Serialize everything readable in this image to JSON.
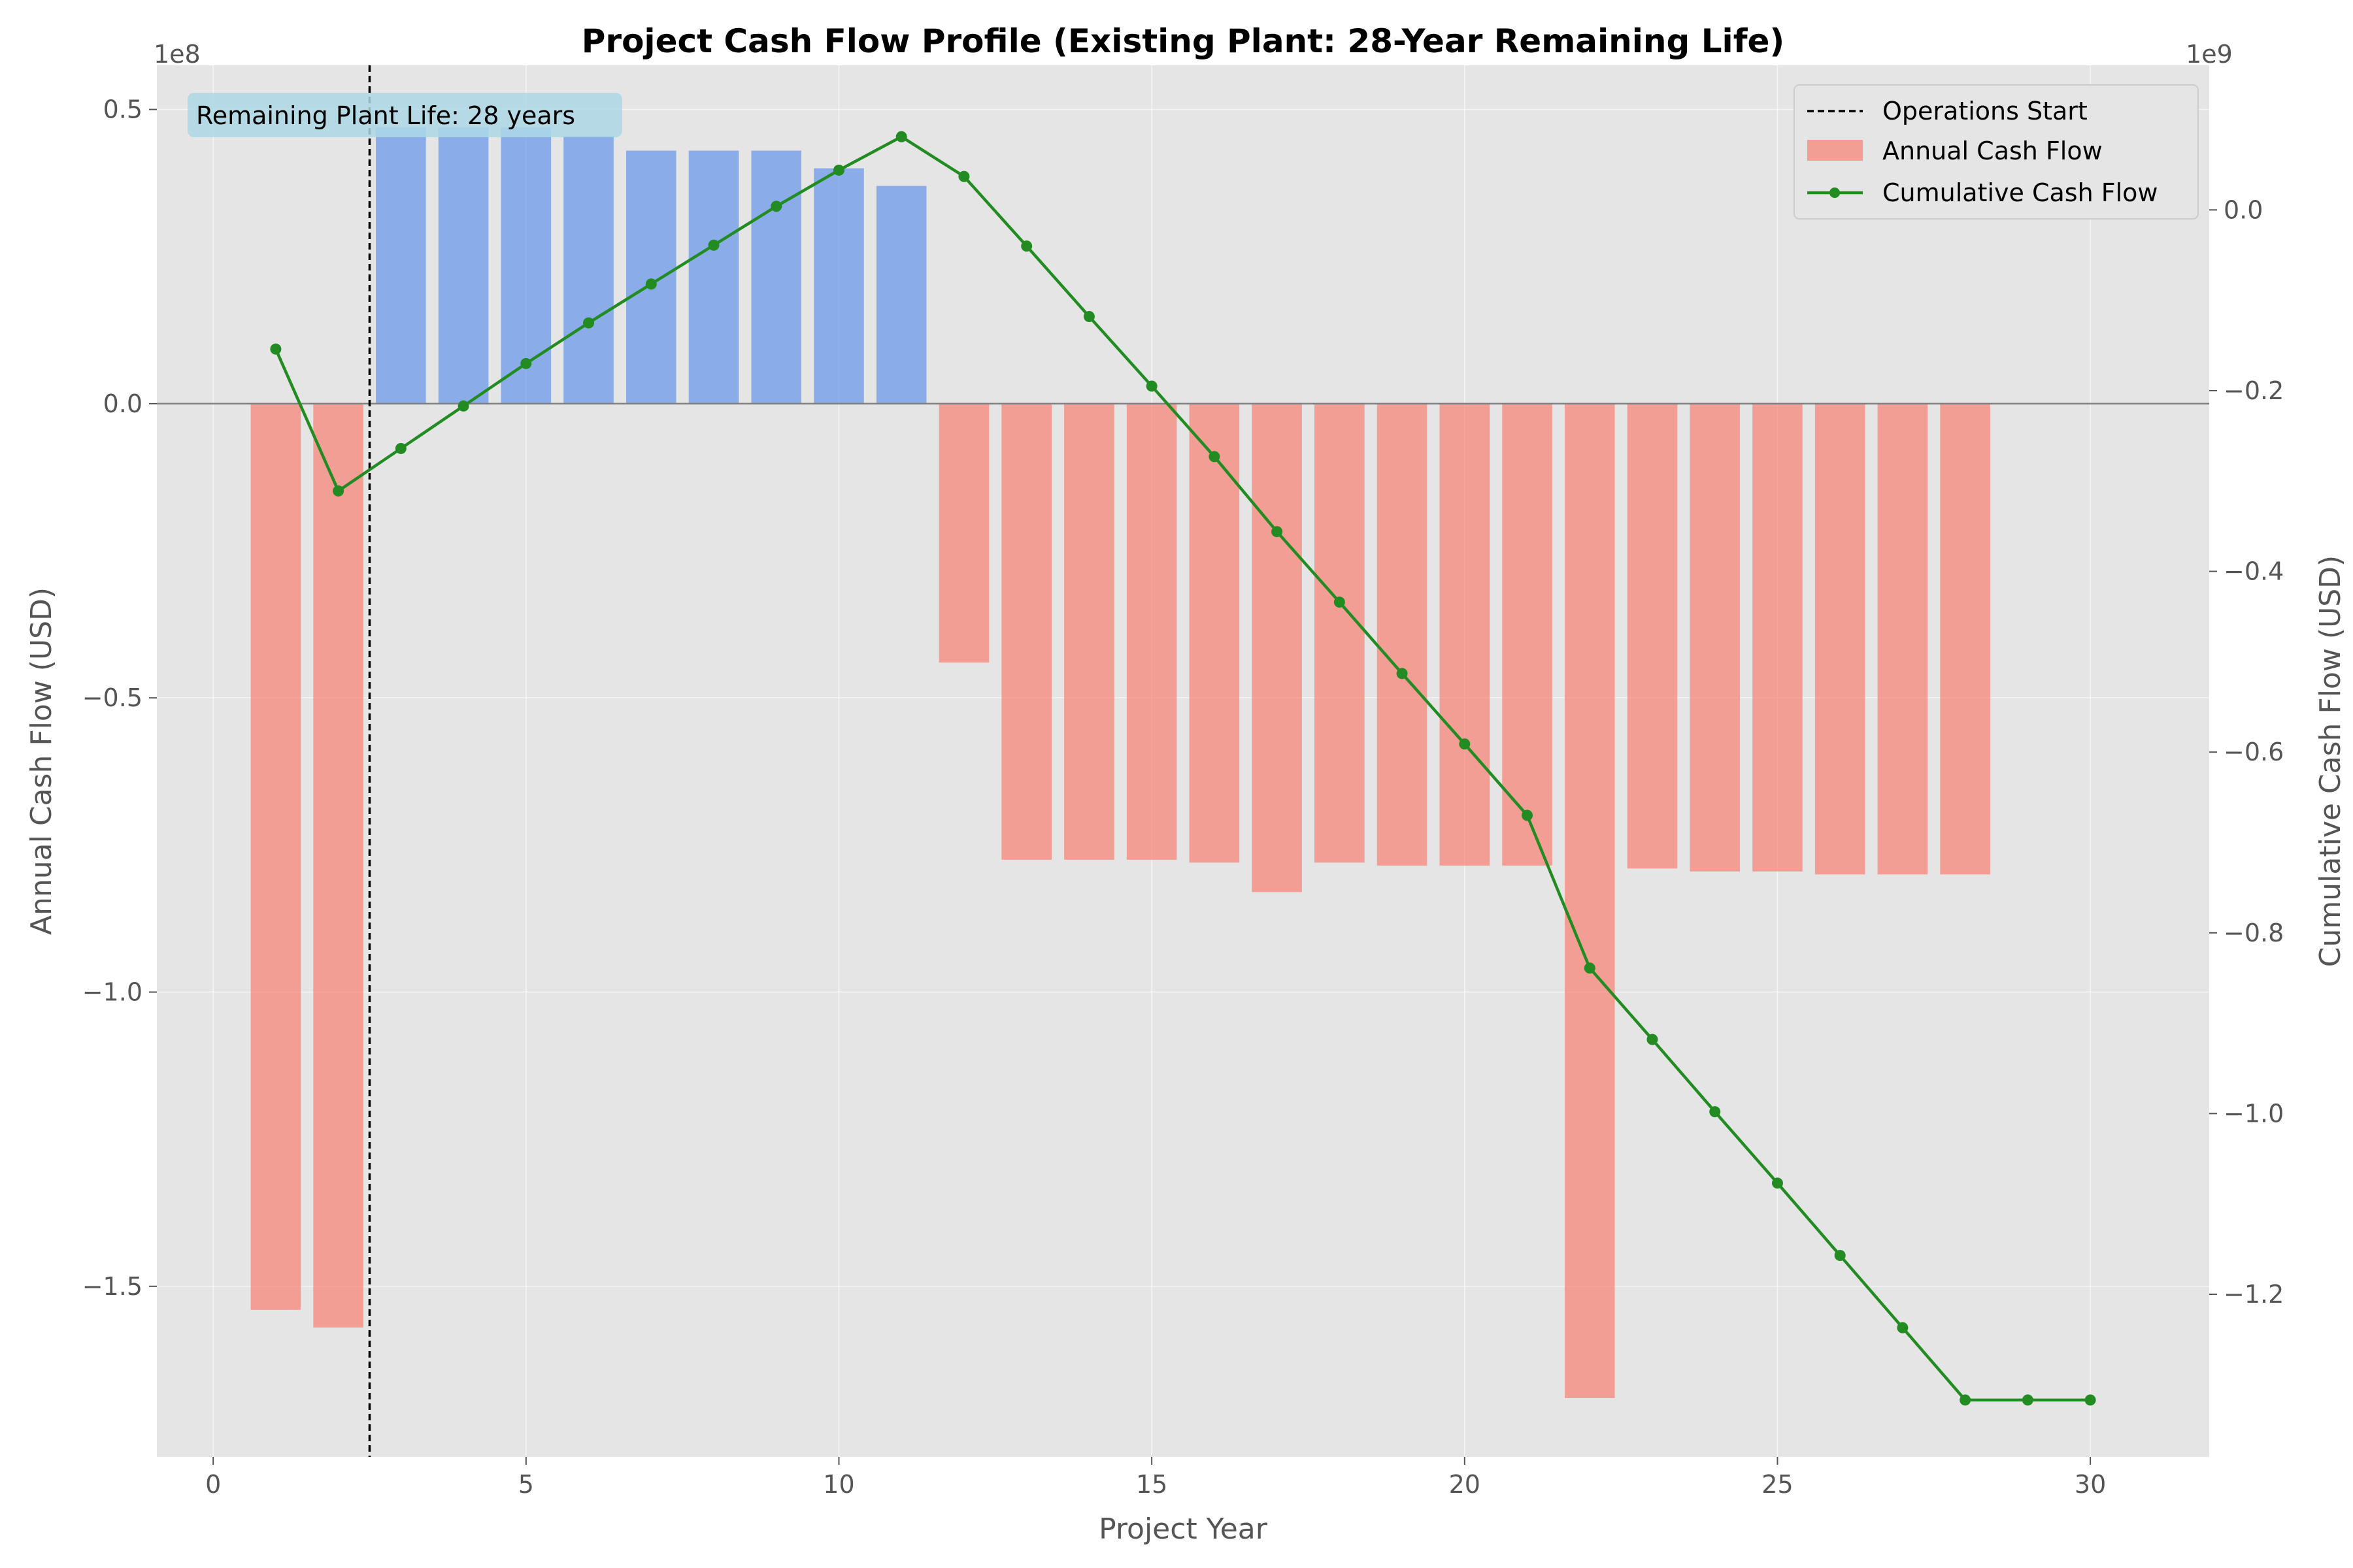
{
  "chart_data": {
    "type": "bar",
    "title": "Project Cash Flow Profile (Existing Plant: 28-Year Remaining Life)",
    "xlabel": "Project Year",
    "ylabel_left": "Annual Cash Flow (USD)",
    "ylabel_right": "Cumulative Cash Flow (USD)",
    "left_offset_text": "1e8",
    "right_offset_text": "1e9",
    "xlim": [
      -0.9,
      31.9
    ],
    "ylim_left": [
      -1.79,
      0.575
    ],
    "ylim_right": [
      -1.38,
      0.16
    ],
    "x_ticks": [
      0,
      5,
      10,
      15,
      20,
      25,
      30
    ],
    "x_tick_labels": [
      "0",
      "5",
      "10",
      "15",
      "20",
      "25",
      "30"
    ],
    "y_left_ticks": [
      0.5,
      0.0,
      -0.5,
      -1.0,
      -1.5
    ],
    "y_left_tick_labels": [
      "0.5",
      "0.0",
      "−0.5",
      "−1.0",
      "−1.5"
    ],
    "y_right_ticks": [
      0.0,
      -0.2,
      -0.4,
      -0.6,
      -0.8,
      -1.0,
      -1.2
    ],
    "y_right_tick_labels": [
      "0.0",
      "−0.2",
      "−0.4",
      "−0.6",
      "−0.8",
      "−1.0",
      "−1.2"
    ],
    "annotation": "Remaining Plant Life: 28 years",
    "vline": {
      "x": 2.5,
      "label": "Operations Start"
    },
    "legend_position": "top-right",
    "legend": [
      "Operations Start",
      "Annual Cash Flow",
      "Cumulative Cash Flow"
    ],
    "grid": true,
    "colors": {
      "positive_bar": "#6495ED",
      "negative_bar": "#FA8072",
      "line": "#228B22",
      "vline": "#000000",
      "axes_bg": "#E5E5E5",
      "annotation_bg": "#ADD8E6"
    },
    "annual_cash_flow": {
      "name": "Annual Cash Flow",
      "units": "1e8 USD",
      "x": [
        1,
        2,
        3,
        4,
        5,
        6,
        7,
        8,
        9,
        10,
        11,
        12,
        13,
        14,
        15,
        16,
        17,
        18,
        19,
        20,
        21,
        22,
        23,
        24,
        25,
        26,
        27,
        28
      ],
      "values": [
        -1.54,
        -1.57,
        0.47,
        0.47,
        0.47,
        0.455,
        0.43,
        0.43,
        0.43,
        0.4,
        0.37,
        -0.44,
        -0.775,
        -0.775,
        -0.775,
        -0.78,
        -0.83,
        -0.78,
        -0.785,
        -0.785,
        -0.785,
        -1.69,
        -0.79,
        -0.795,
        -0.795,
        -0.8,
        -0.8,
        -0.8
      ]
    },
    "cumulative_cash_flow": {
      "name": "Cumulative Cash Flow",
      "units": "1e9 USD",
      "x": [
        1,
        2,
        3,
        4,
        5,
        6,
        7,
        8,
        9,
        10,
        11,
        12,
        13,
        14,
        15,
        16,
        17,
        18,
        19,
        20,
        21,
        22,
        23,
        24,
        25,
        26,
        27,
        28,
        29,
        30
      ],
      "values": [
        -0.154,
        -0.311,
        -0.264,
        -0.217,
        -0.17,
        -0.125,
        -0.082,
        -0.039,
        0.004,
        0.044,
        0.081,
        0.037,
        -0.04,
        -0.118,
        -0.195,
        -0.273,
        -0.356,
        -0.434,
        -0.513,
        -0.591,
        -0.67,
        -0.839,
        -0.918,
        -0.998,
        -1.077,
        -1.157,
        -1.237,
        -1.317,
        -1.317,
        -1.317
      ]
    }
  }
}
